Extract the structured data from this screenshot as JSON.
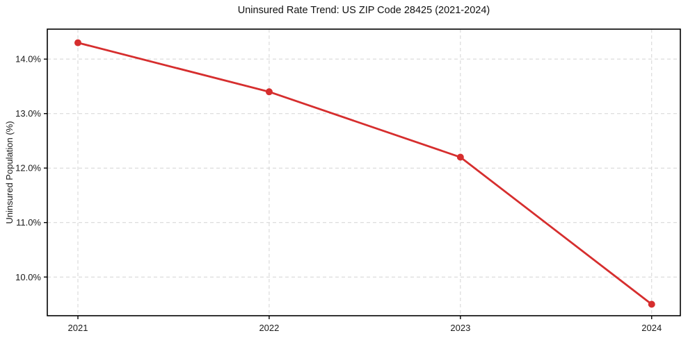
{
  "chart_data": {
    "type": "line",
    "title": "Uninsured Rate Trend: US ZIP Code 28425 (2021-2024)",
    "xlabel": "",
    "ylabel": "Uninsured Population (%)",
    "x": [
      2021,
      2022,
      2023,
      2024
    ],
    "values": [
      14.3,
      13.4,
      12.2,
      9.5
    ],
    "x_tick_labels": [
      "2021",
      "2022",
      "2023",
      "2024"
    ],
    "y_ticks": [
      10,
      11,
      12,
      13,
      14
    ],
    "y_tick_labels": [
      "10.0%",
      "11.0%",
      "12.0%",
      "13.0%",
      "14.0%"
    ],
    "xlim": [
      2020.84,
      2024.15
    ],
    "ylim": [
      9.29,
      14.55
    ],
    "grid": true,
    "legend": "none",
    "colors": {
      "line": "#d62e2e",
      "marker": "#d62e2e",
      "grid": "#d4d4d4",
      "spine": "#000000",
      "text": "#1a1a1a",
      "background": "#ffffff"
    }
  }
}
